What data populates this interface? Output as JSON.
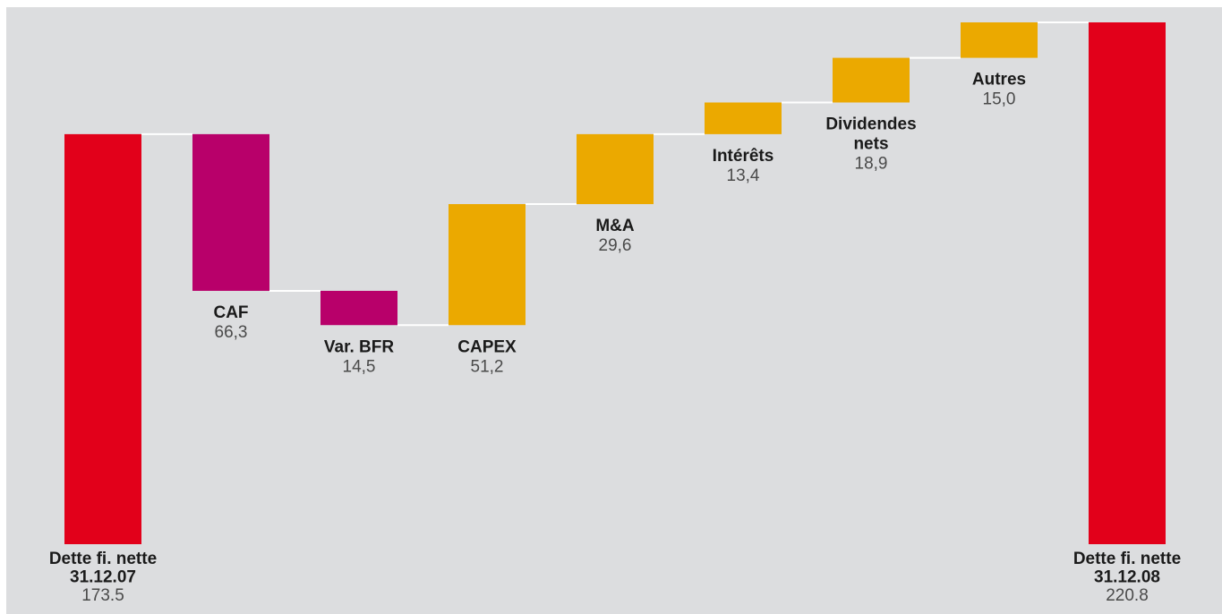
{
  "chart_data": {
    "type": "waterfall",
    "categories": [
      [
        "Dette fi. nette",
        "31.12.07"
      ],
      [
        "CAF"
      ],
      [
        "Var. BFR"
      ],
      [
        "CAPEX"
      ],
      [
        "M&A"
      ],
      [
        "Intérêts"
      ],
      [
        "Dividendes",
        "nets"
      ],
      [
        "Autres"
      ],
      [
        "Dette fi. nette",
        "31.12.08"
      ]
    ],
    "measures": [
      "absolute",
      "decrease",
      "decrease",
      "increase",
      "increase",
      "increase",
      "increase",
      "increase",
      "absolute"
    ],
    "values": [
      173.5,
      66.3,
      14.5,
      51.2,
      29.6,
      13.4,
      18.9,
      15.0,
      220.8
    ],
    "value_labels": [
      "173.5",
      "66,3",
      "14,5",
      "51,2",
      "29,6",
      "13,4",
      "18,9",
      "15,0",
      "220.8"
    ],
    "colors": {
      "absolute": "#e2001a",
      "decrease": "#b8006a",
      "increase": "#eba900"
    }
  }
}
